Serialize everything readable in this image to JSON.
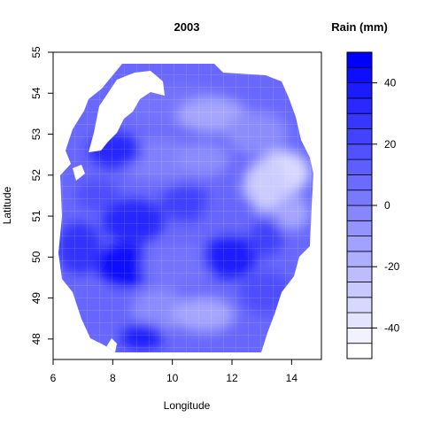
{
  "chart_data": {
    "type": "heatmap",
    "title": "2003",
    "xlabel": "Longitude",
    "ylabel": "Latitude",
    "xlim": [
      6,
      15
    ],
    "ylim": [
      47.5,
      55
    ],
    "x_ticks": [
      "6",
      "8",
      "10",
      "12",
      "14"
    ],
    "y_ticks": [
      "48",
      "49",
      "50",
      "51",
      "52",
      "53",
      "54",
      "55"
    ],
    "colorbar": {
      "title": "Rain (mm)",
      "range": [
        -50,
        50
      ],
      "levels": [
        -50,
        -45,
        -40,
        -35,
        -30,
        -25,
        -20,
        -15,
        -10,
        -5,
        0,
        5,
        10,
        15,
        20,
        25,
        30,
        35,
        40,
        45,
        50
      ],
      "ticks": [
        "-40",
        "-20",
        "0",
        "20",
        "40"
      ],
      "color_low": "#ffffff",
      "color_high": "#0000ff"
    },
    "grid": true
  }
}
